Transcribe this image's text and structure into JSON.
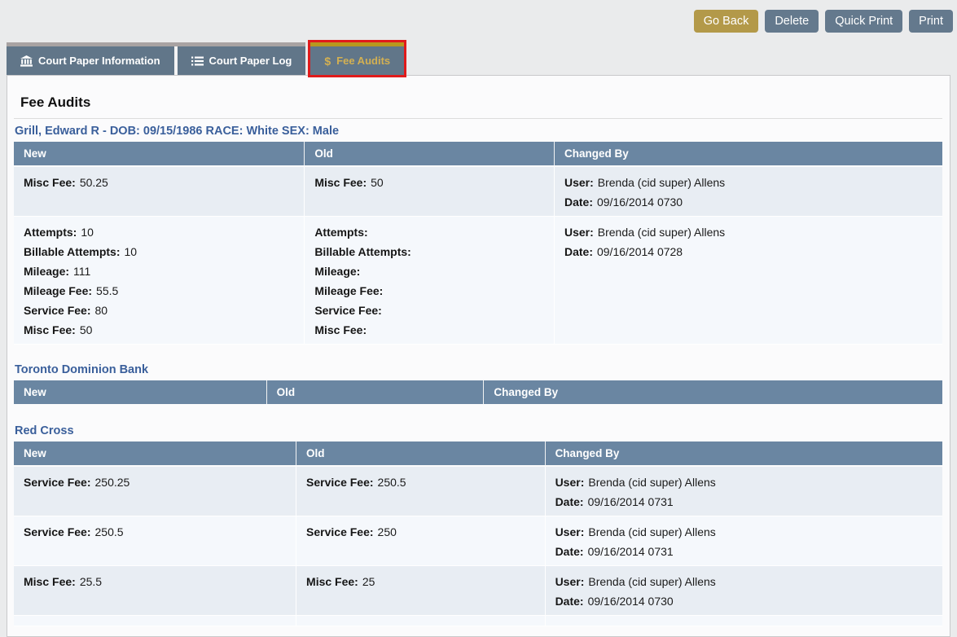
{
  "colors": {
    "accent_gold": "#b39949",
    "slate": "#64798d",
    "table_header_blue": "#6a86a2",
    "section_heading_blue": "#3a5f9b",
    "active_tab_gold": "#d3b052",
    "highlight_red": "#e01b1b",
    "row_odd": "#e8edf3",
    "row_even": "#f5f8fc"
  },
  "toolbar": {
    "buttons": [
      {
        "label": "Go Back",
        "variant": "gold"
      },
      {
        "label": "Delete",
        "variant": "slate"
      },
      {
        "label": "Quick Print",
        "variant": "slate"
      },
      {
        "label": "Print",
        "variant": "slate"
      }
    ]
  },
  "tabs": [
    {
      "label": "Court Paper Information",
      "icon": "courthouse-icon",
      "active": false,
      "highlighted": false
    },
    {
      "label": "Court Paper Log",
      "icon": "list-icon",
      "active": false,
      "highlighted": false
    },
    {
      "label": "Fee Audits",
      "icon": "dollar-icon",
      "active": true,
      "highlighted": true
    }
  ],
  "content": {
    "title": "Fee Audits",
    "sections": [
      {
        "heading": "Grill, Edward R - DOB: 09/15/1986 RACE: White SEX: Male",
        "columns": [
          "New",
          "Old",
          "Changed By"
        ],
        "rows": [
          {
            "cells": [
              [
                {
                  "label": "Misc Fee:",
                  "value": "50.25"
                }
              ],
              [
                {
                  "label": "Misc Fee:",
                  "value": "50"
                }
              ],
              [
                {
                  "label": "User:",
                  "value": "Brenda (cid super) Allens"
                },
                {
                  "label": "Date:",
                  "value": "09/16/2014 0730"
                }
              ]
            ]
          },
          {
            "cells": [
              [
                {
                  "label": "Attempts:",
                  "value": "10"
                },
                {
                  "label": "Billable Attempts:",
                  "value": "10"
                },
                {
                  "label": "Mileage:",
                  "value": "111"
                },
                {
                  "label": "Mileage Fee:",
                  "value": "55.5"
                },
                {
                  "label": "Service Fee:",
                  "value": "80"
                },
                {
                  "label": "Misc Fee:",
                  "value": "50"
                }
              ],
              [
                {
                  "label": "Attempts:",
                  "value": ""
                },
                {
                  "label": "Billable Attempts:",
                  "value": ""
                },
                {
                  "label": "Mileage:",
                  "value": ""
                },
                {
                  "label": "Mileage Fee:",
                  "value": ""
                },
                {
                  "label": "Service Fee:",
                  "value": ""
                },
                {
                  "label": "Misc Fee:",
                  "value": ""
                }
              ],
              [
                {
                  "label": "User:",
                  "value": "Brenda (cid super) Allens"
                },
                {
                  "label": "Date:",
                  "value": "09/16/2014 0728"
                }
              ]
            ]
          }
        ]
      },
      {
        "heading": "Toronto Dominion Bank",
        "columns": [
          "New",
          "Old",
          "Changed By"
        ],
        "rows": []
      },
      {
        "heading": "Red Cross",
        "columns": [
          "New",
          "Old",
          "Changed By"
        ],
        "rows": [
          {
            "cells": [
              [
                {
                  "label": "Service Fee:",
                  "value": "250.25"
                }
              ],
              [
                {
                  "label": "Service Fee:",
                  "value": "250.5"
                }
              ],
              [
                {
                  "label": "User:",
                  "value": "Brenda (cid super) Allens"
                },
                {
                  "label": "Date:",
                  "value": "09/16/2014 0731"
                }
              ]
            ]
          },
          {
            "cells": [
              [
                {
                  "label": "Service Fee:",
                  "value": "250.5"
                }
              ],
              [
                {
                  "label": "Service Fee:",
                  "value": "250"
                }
              ],
              [
                {
                  "label": "User:",
                  "value": "Brenda (cid super) Allens"
                },
                {
                  "label": "Date:",
                  "value": "09/16/2014 0731"
                }
              ]
            ]
          },
          {
            "cells": [
              [
                {
                  "label": "Misc Fee:",
                  "value": "25.5"
                }
              ],
              [
                {
                  "label": "Misc Fee:",
                  "value": "25"
                }
              ],
              [
                {
                  "label": "User:",
                  "value": "Brenda (cid super) Allens"
                },
                {
                  "label": "Date:",
                  "value": "09/16/2014 0730"
                }
              ]
            ]
          },
          {
            "cells": [
              [],
              [],
              []
            ]
          }
        ]
      }
    ]
  }
}
